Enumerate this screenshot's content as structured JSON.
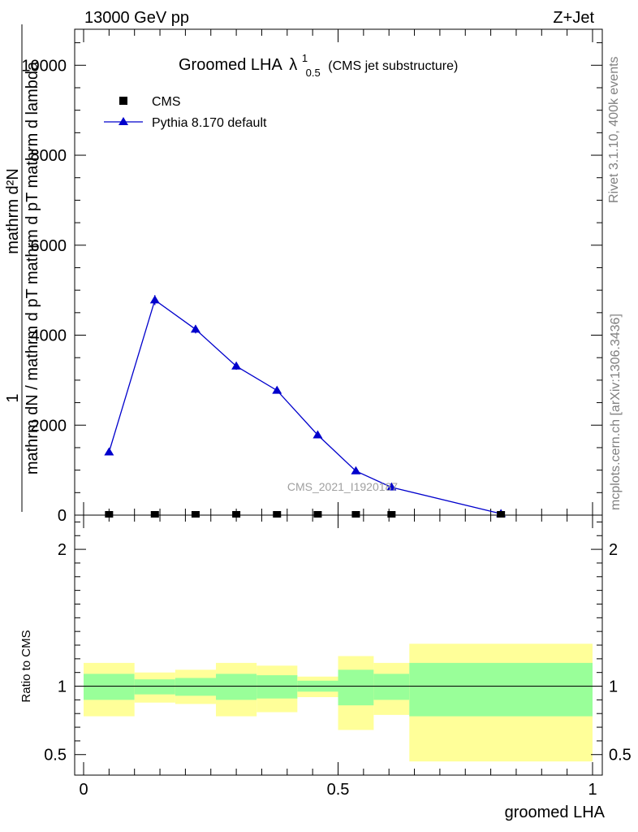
{
  "header": {
    "left": "13000 GeV pp",
    "right": "Z+Jet"
  },
  "side_text": {
    "rivet": "Rivet 3.1.10,  400k events",
    "mcplots": "mcplots.cern.ch [arXiv:1306.3436]"
  },
  "watermark": "CMS_2021_I1920187",
  "chart_data": [
    {
      "type": "line",
      "title_main": "Groomed LHA",
      "title_symbol": "λ",
      "title_sup": "1",
      "title_sub": "0.5",
      "title_suffix": "(CMS jet substructure)",
      "ylabel_top": "1",
      "ylabel_numerator": "mathrm d^{2}N",
      "ylabel_numerator_visible": "mathrm d²N",
      "ylabel_denominator": "mathrm dN / mathrm d p_T mathrm d p_T mathrm d lambda",
      "ylabel_denominator_visible": "mathrm dN / mathrm d pT mathrm d pT mathrm d lambda",
      "xlim": [
        0,
        1
      ],
      "ylim": [
        0,
        10800
      ],
      "yticks": [
        0,
        2000,
        4000,
        6000,
        8000,
        10000
      ],
      "yticklabels": [
        "0",
        "2000",
        "4000",
        "6000",
        "8000",
        "10000"
      ],
      "legend_position": "top-left",
      "series": [
        {
          "name": "CMS",
          "marker": "square",
          "color": "#000000",
          "x": [
            0.05,
            0.14,
            0.22,
            0.3,
            0.38,
            0.46,
            0.535,
            0.605,
            0.82
          ],
          "y": [
            0,
            0,
            0,
            0,
            0,
            0,
            0,
            0,
            0
          ]
        },
        {
          "name": "Pythia 8.170 default",
          "marker": "triangle",
          "color": "#0000cc",
          "x": [
            0.05,
            0.14,
            0.22,
            0.3,
            0.38,
            0.46,
            0.535,
            0.605,
            0.82
          ],
          "y": [
            1400,
            4780,
            4130,
            3310,
            2770,
            1780,
            980,
            620,
            30
          ],
          "yerr": [
            40,
            110,
            90,
            80,
            70,
            50,
            30,
            25,
            10
          ]
        }
      ]
    },
    {
      "type": "area",
      "ylabel": "Ratio to CMS",
      "xlabel": "groomed LHA",
      "xlim": [
        0,
        1
      ],
      "ylim": [
        0.35,
        2.25
      ],
      "xticks": [
        0,
        0.5,
        1
      ],
      "xticklabels": [
        "0",
        "0.5",
        "1"
      ],
      "yticks": [
        0.5,
        1,
        2
      ],
      "yticklabels": [
        "0.5",
        "1",
        "2"
      ],
      "reference_line": 1,
      "band_colors": {
        "inner": "#99ff99",
        "outer": "#ffff99"
      },
      "bins": [
        {
          "lo": 0.0,
          "hi": 0.1,
          "inner": [
            0.9,
            1.09
          ],
          "outer": [
            0.78,
            1.17
          ]
        },
        {
          "lo": 0.1,
          "hi": 0.18,
          "inner": [
            0.94,
            1.05
          ],
          "outer": [
            0.88,
            1.1
          ]
        },
        {
          "lo": 0.18,
          "hi": 0.26,
          "inner": [
            0.93,
            1.06
          ],
          "outer": [
            0.87,
            1.12
          ]
        },
        {
          "lo": 0.26,
          "hi": 0.34,
          "inner": [
            0.9,
            1.09
          ],
          "outer": [
            0.78,
            1.17
          ]
        },
        {
          "lo": 0.34,
          "hi": 0.42,
          "inner": [
            0.91,
            1.08
          ],
          "outer": [
            0.81,
            1.15
          ]
        },
        {
          "lo": 0.42,
          "hi": 0.5,
          "inner": [
            0.96,
            1.04
          ],
          "outer": [
            0.92,
            1.07
          ]
        },
        {
          "lo": 0.5,
          "hi": 0.57,
          "inner": [
            0.86,
            1.12
          ],
          "outer": [
            0.68,
            1.22
          ]
        },
        {
          "lo": 0.57,
          "hi": 0.64,
          "inner": [
            0.9,
            1.09
          ],
          "outer": [
            0.79,
            1.17
          ]
        },
        {
          "lo": 0.64,
          "hi": 1.0,
          "inner": [
            0.78,
            1.17
          ],
          "outer": [
            0.45,
            1.31
          ]
        }
      ]
    }
  ]
}
